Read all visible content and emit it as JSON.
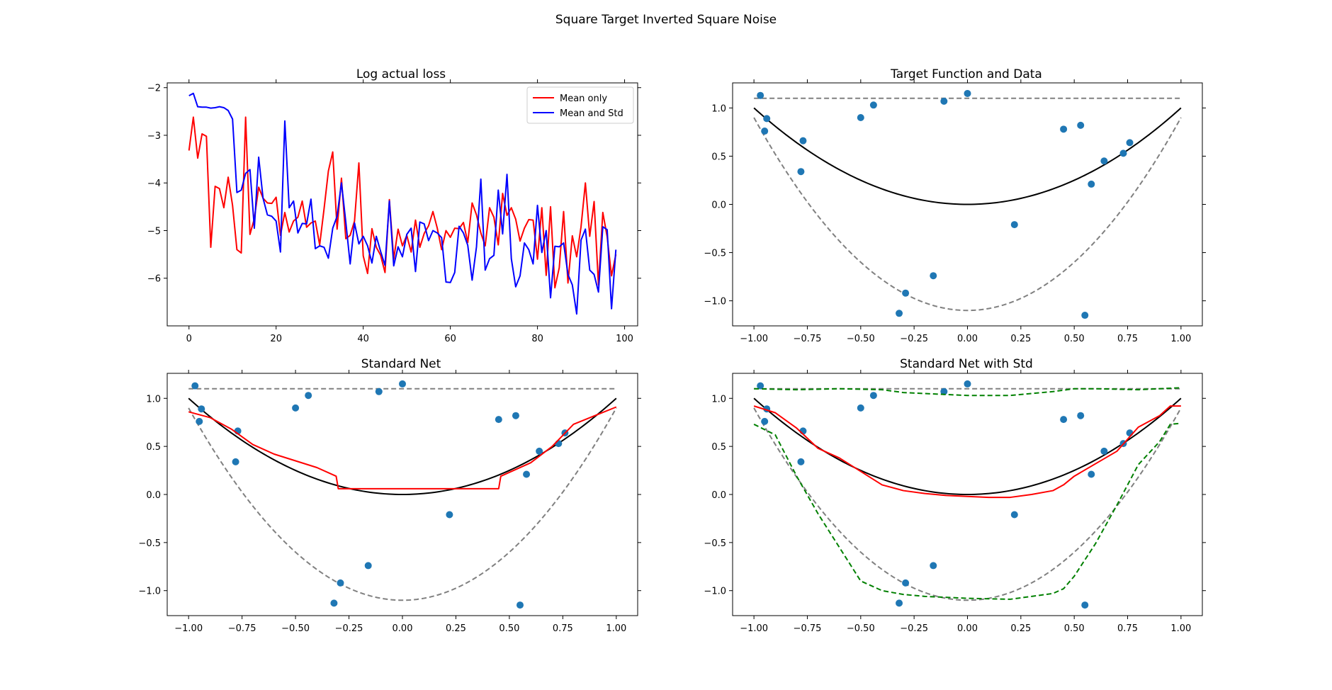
{
  "figure": {
    "suptitle": "Square Target Inverted Square Noise"
  },
  "chart_data": [
    {
      "id": "loss",
      "type": "line",
      "title": "Log actual loss",
      "xlim": [
        -5,
        103
      ],
      "ylim": [
        -7.0,
        -1.9
      ],
      "xticks": [
        0,
        20,
        40,
        60,
        80,
        100
      ],
      "yticks": [
        -6,
        -5,
        -4,
        -3,
        -2
      ],
      "legend": {
        "placement": "top-right"
      },
      "series": [
        {
          "name": "Mean only",
          "color": "#ff0000",
          "y": [
            -3.32,
            -2.62,
            -3.48,
            -2.97,
            -3.02,
            -5.35,
            -4.07,
            -4.12,
            -4.52,
            -3.88,
            -4.47,
            -5.4,
            -5.47,
            -2.62,
            -5.08,
            -4.75,
            -4.09,
            -4.32,
            -4.42,
            -4.43,
            -4.3,
            -5.1,
            -4.62,
            -5.03,
            -4.8,
            -4.72,
            -4.38,
            -4.93,
            -4.84,
            -4.8,
            -5.3,
            -4.55,
            -3.75,
            -3.35,
            -4.97,
            -3.9,
            -5.17,
            -5.1,
            -4.8,
            -3.58,
            -5.53,
            -5.9,
            -4.96,
            -5.35,
            -5.52,
            -5.88,
            -4.35,
            -5.6,
            -4.97,
            -5.32,
            -5.1,
            -5.45,
            -4.78,
            -5.35,
            -5.06,
            -4.9,
            -4.6,
            -4.95,
            -5.4,
            -5.0,
            -5.14,
            -4.95,
            -4.96,
            -4.83,
            -5.25,
            -4.42,
            -4.67,
            -5.05,
            -5.32,
            -4.52,
            -4.72,
            -5.3,
            -4.22,
            -4.68,
            -4.52,
            -4.76,
            -5.22,
            -4.95,
            -4.77,
            -4.78,
            -5.6,
            -4.52,
            -5.94,
            -4.5,
            -6.2,
            -5.78,
            -4.6,
            -6.1,
            -5.11,
            -5.55,
            -4.92,
            -4.0,
            -5.12,
            -4.39,
            -6.14,
            -4.62,
            -5.13,
            -5.95,
            -5.5
          ]
        },
        {
          "name": "Mean and Std",
          "color": "#0000ff",
          "y": [
            -2.17,
            -2.12,
            -2.4,
            -2.41,
            -2.41,
            -2.43,
            -2.42,
            -2.4,
            -2.42,
            -2.48,
            -2.66,
            -4.2,
            -4.15,
            -3.8,
            -3.72,
            -4.95,
            -3.46,
            -4.32,
            -4.67,
            -4.7,
            -4.8,
            -5.45,
            -2.7,
            -4.52,
            -4.38,
            -5.05,
            -4.85,
            -4.86,
            -4.34,
            -5.38,
            -5.32,
            -5.35,
            -5.58,
            -4.95,
            -4.7,
            -4.0,
            -4.82,
            -5.7,
            -4.84,
            -5.28,
            -5.12,
            -5.32,
            -5.68,
            -5.12,
            -5.44,
            -5.73,
            -4.38,
            -5.74,
            -5.34,
            -5.55,
            -5.08,
            -4.95,
            -5.86,
            -4.82,
            -4.86,
            -5.21,
            -5.0,
            -5.05,
            -5.15,
            -6.08,
            -6.09,
            -5.88,
            -4.91,
            -5.05,
            -5.31,
            -6.04,
            -5.34,
            -3.92,
            -5.83,
            -5.59,
            -5.52,
            -4.15,
            -5.07,
            -3.82,
            -5.59,
            -6.18,
            -5.95,
            -5.26,
            -5.4,
            -5.7,
            -4.47,
            -5.46,
            -5.0,
            -6.41,
            -5.33,
            -5.34,
            -5.26,
            -5.92,
            -6.14,
            -6.75,
            -5.2,
            -4.97,
            -5.83,
            -5.92,
            -6.29,
            -4.92,
            -4.98,
            -6.64,
            -5.4
          ]
        }
      ]
    },
    {
      "id": "target",
      "type": "line",
      "title": "Target Function and Data",
      "xlim": [
        -1.1,
        1.1
      ],
      "ylim": [
        -1.26,
        1.26
      ],
      "xticks": [
        -1.0,
        -0.75,
        -0.5,
        -0.25,
        0.0,
        0.25,
        0.5,
        0.75,
        1.0
      ],
      "xtick_labels": [
        "−1.00",
        "−0.75",
        "−0.50",
        "−0.25",
        "0.00",
        "0.25",
        "0.50",
        "0.75",
        "1.00"
      ],
      "yticks": [
        -1.0,
        -0.5,
        0.0,
        0.5,
        1.0
      ],
      "ytick_labels": [
        "−1.0",
        "−0.5",
        "0.0",
        "0.5",
        "1.0"
      ],
      "curves": {
        "target": "y = x^2",
        "upper": "y = 1.1",
        "lower": "y = 2x^2 - 1.1"
      },
      "scatter": {
        "color": "#1f77b4",
        "points": [
          [
            -0.97,
            1.13
          ],
          [
            -0.95,
            0.76
          ],
          [
            -0.94,
            0.89
          ],
          [
            -0.77,
            0.66
          ],
          [
            -0.78,
            0.34
          ],
          [
            -0.5,
            0.9
          ],
          [
            -0.44,
            1.03
          ],
          [
            -0.32,
            -1.13
          ],
          [
            -0.29,
            -0.92
          ],
          [
            -0.16,
            -0.74
          ],
          [
            -0.11,
            1.07
          ],
          [
            0.0,
            1.15
          ],
          [
            0.22,
            -0.21
          ],
          [
            0.45,
            0.78
          ],
          [
            0.53,
            0.82
          ],
          [
            0.55,
            -1.15
          ],
          [
            0.58,
            0.21
          ],
          [
            0.64,
            0.45
          ],
          [
            0.73,
            0.53
          ],
          [
            0.76,
            0.64
          ]
        ]
      }
    },
    {
      "id": "standard",
      "type": "line",
      "title": "Standard Net",
      "xlim": [
        -1.1,
        1.1
      ],
      "ylim": [
        -1.26,
        1.26
      ],
      "xticks": [
        -1.0,
        -0.75,
        -0.5,
        -0.25,
        0.0,
        0.25,
        0.5,
        0.75,
        1.0
      ],
      "xtick_labels": [
        "−1.00",
        "−0.75",
        "−0.50",
        "−0.25",
        "0.00",
        "0.25",
        "0.50",
        "0.75",
        "1.00"
      ],
      "yticks": [
        -1.0,
        -0.5,
        0.0,
        0.5,
        1.0
      ],
      "ytick_labels": [
        "−1.0",
        "−0.5",
        "0.0",
        "0.5",
        "1.0"
      ],
      "prediction": {
        "color": "#ff0000",
        "points": [
          [
            -1.0,
            0.86
          ],
          [
            -0.9,
            0.8
          ],
          [
            -0.8,
            0.68
          ],
          [
            -0.7,
            0.52
          ],
          [
            -0.6,
            0.42
          ],
          [
            -0.5,
            0.35
          ],
          [
            -0.4,
            0.28
          ],
          [
            -0.31,
            0.19
          ],
          [
            -0.3,
            0.06
          ],
          [
            0.0,
            0.06
          ],
          [
            0.45,
            0.06
          ],
          [
            0.46,
            0.19
          ],
          [
            0.6,
            0.33
          ],
          [
            0.7,
            0.5
          ],
          [
            0.8,
            0.73
          ],
          [
            0.9,
            0.82
          ],
          [
            1.0,
            0.91
          ]
        ]
      }
    },
    {
      "id": "withstd",
      "type": "line",
      "title": "Standard Net with Std",
      "xlim": [
        -1.1,
        1.1
      ],
      "ylim": [
        -1.26,
        1.26
      ],
      "xticks": [
        -1.0,
        -0.75,
        -0.5,
        -0.25,
        0.0,
        0.25,
        0.5,
        0.75,
        1.0
      ],
      "xtick_labels": [
        "−1.00",
        "−0.75",
        "−0.50",
        "−0.25",
        "0.00",
        "0.25",
        "0.50",
        "0.75",
        "1.00"
      ],
      "yticks": [
        -1.0,
        -0.5,
        0.0,
        0.5,
        1.0
      ],
      "ytick_labels": [
        "−1.0",
        "−0.5",
        "0.0",
        "0.5",
        "1.0"
      ],
      "prediction": {
        "color": "#ff0000",
        "points": [
          [
            -1.0,
            0.92
          ],
          [
            -0.9,
            0.85
          ],
          [
            -0.8,
            0.69
          ],
          [
            -0.7,
            0.48
          ],
          [
            -0.6,
            0.38
          ],
          [
            -0.5,
            0.24
          ],
          [
            -0.4,
            0.1
          ],
          [
            -0.3,
            0.04
          ],
          [
            -0.2,
            0.01
          ],
          [
            -0.1,
            -0.01
          ],
          [
            0.0,
            -0.02
          ],
          [
            0.1,
            -0.03
          ],
          [
            0.2,
            -0.03
          ],
          [
            0.3,
            0.0
          ],
          [
            0.4,
            0.04
          ],
          [
            0.45,
            0.1
          ],
          [
            0.5,
            0.19
          ],
          [
            0.6,
            0.32
          ],
          [
            0.7,
            0.45
          ],
          [
            0.8,
            0.7
          ],
          [
            0.9,
            0.82
          ],
          [
            0.95,
            0.92
          ],
          [
            1.0,
            0.92
          ]
        ]
      },
      "band_upper": {
        "color": "#008000",
        "points": [
          [
            -1.0,
            1.1
          ],
          [
            -0.8,
            1.09
          ],
          [
            -0.6,
            1.1
          ],
          [
            -0.4,
            1.09
          ],
          [
            -0.3,
            1.06
          ],
          [
            -0.2,
            1.05
          ],
          [
            0.0,
            1.03
          ],
          [
            0.2,
            1.03
          ],
          [
            0.4,
            1.07
          ],
          [
            0.5,
            1.1
          ],
          [
            0.6,
            1.1
          ],
          [
            0.8,
            1.09
          ],
          [
            1.0,
            1.11
          ]
        ]
      },
      "band_lower": {
        "color": "#008000",
        "points": [
          [
            -1.0,
            0.73
          ],
          [
            -0.9,
            0.62
          ],
          [
            -0.8,
            0.19
          ],
          [
            -0.7,
            -0.2
          ],
          [
            -0.6,
            -0.55
          ],
          [
            -0.5,
            -0.9
          ],
          [
            -0.4,
            -1.0
          ],
          [
            -0.3,
            -1.04
          ],
          [
            -0.2,
            -1.06
          ],
          [
            0.0,
            -1.08
          ],
          [
            0.2,
            -1.09
          ],
          [
            0.4,
            -1.03
          ],
          [
            0.45,
            -0.98
          ],
          [
            0.5,
            -0.85
          ],
          [
            0.6,
            -0.51
          ],
          [
            0.7,
            -0.11
          ],
          [
            0.8,
            0.31
          ],
          [
            0.9,
            0.55
          ],
          [
            0.95,
            0.73
          ],
          [
            1.0,
            0.74
          ]
        ]
      }
    }
  ]
}
